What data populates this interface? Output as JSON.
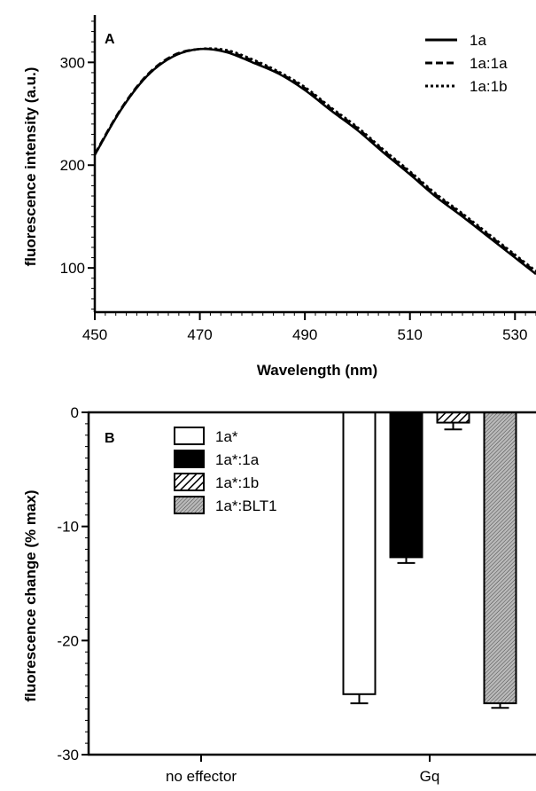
{
  "chart_data": [
    {
      "panel": "A",
      "type": "line",
      "xlabel": "Wavelength (nm)",
      "ylabel": "fluorescence intensity (a.u.)",
      "xlim": [
        450,
        534
      ],
      "ylim": [
        57,
        346
      ],
      "xticks": [
        450,
        470,
        490,
        510,
        530
      ],
      "yticks": [
        100,
        200,
        300
      ],
      "legend_position": "top-right",
      "grid": false,
      "series": [
        {
          "name": "1a",
          "style": "solid",
          "x": [
            450,
            455,
            460,
            465,
            470,
            475,
            480,
            485,
            490,
            495,
            500,
            505,
            510,
            515,
            520,
            525,
            530,
            534
          ],
          "y": [
            210,
            254,
            287,
            306,
            313,
            310,
            300,
            289,
            273,
            253,
            234,
            212,
            191,
            169,
            150,
            130,
            110,
            94
          ]
        },
        {
          "name": "1a:1a",
          "style": "dashed",
          "x": [
            450,
            455,
            460,
            465,
            470,
            475,
            480,
            485,
            490,
            495,
            500,
            505,
            510,
            515,
            520,
            525,
            530,
            534
          ],
          "y": [
            211,
            255,
            288,
            307,
            313,
            311,
            302,
            290,
            275,
            255,
            236,
            214,
            193,
            171,
            152,
            132,
            112,
            96
          ]
        },
        {
          "name": "1a:1b",
          "style": "dotted",
          "x": [
            450,
            455,
            460,
            465,
            470,
            475,
            480,
            485,
            490,
            495,
            500,
            505,
            510,
            515,
            520,
            525,
            530,
            534
          ],
          "y": [
            210,
            254,
            287,
            306,
            313,
            312,
            303,
            291,
            276,
            256,
            237,
            215,
            194,
            172,
            153,
            133,
            113,
            97
          ]
        }
      ]
    },
    {
      "panel": "B",
      "type": "bar",
      "xlabel": "",
      "ylabel": "fluorescence change (% max)",
      "ylim": [
        -30,
        0
      ],
      "yticks": [
        0,
        -10,
        -20,
        -30
      ],
      "categories": [
        "no effector",
        "Gq"
      ],
      "legend_position": "top-left",
      "grid": false,
      "series": [
        {
          "name": "1a*",
          "fill": "white",
          "values": [
            0,
            -24.7
          ],
          "errors": [
            0,
            0.8
          ]
        },
        {
          "name": "1a*:1a",
          "fill": "black",
          "values": [
            0,
            -12.7
          ],
          "errors": [
            0,
            0.5
          ]
        },
        {
          "name": "1a*:1b",
          "fill": "diagonal-hatch",
          "values": [
            0,
            -0.9
          ],
          "errors": [
            0,
            0.6
          ]
        },
        {
          "name": "1a*:BLT1",
          "fill": "fine-gray-hatch",
          "values": [
            0,
            -25.5
          ],
          "errors": [
            0,
            0.4
          ]
        }
      ]
    }
  ]
}
